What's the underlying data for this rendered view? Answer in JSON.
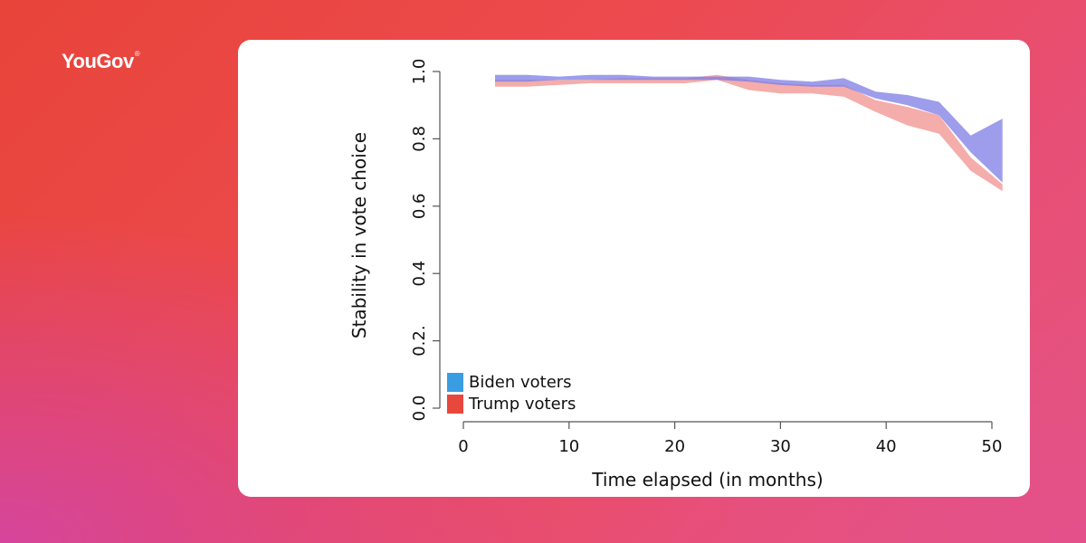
{
  "brand": {
    "name": "YouGov",
    "mark": "®"
  },
  "chart_data": {
    "type": "area",
    "title": "",
    "xlabel": "Time elapsed (in months)",
    "ylabel": "Stability in vote choice",
    "xlim": [
      0,
      50
    ],
    "ylim": [
      0.0,
      1.0
    ],
    "xticks": [
      0,
      10,
      20,
      30,
      40,
      50
    ],
    "yticks": [
      0.0,
      0.2,
      0.4,
      0.6,
      0.8,
      1.0
    ],
    "ytick_labels": [
      "0.0",
      "0.2.",
      "0.4",
      "0.6",
      "0.8",
      "1.0"
    ],
    "grid": false,
    "legend_position": "bottom-left",
    "series": [
      {
        "name": "Biden voters",
        "color": "#3b9de1",
        "fill": "#7c7ce6",
        "opacity": 0.75,
        "x": [
          3,
          6,
          9,
          12,
          15,
          18,
          21,
          24,
          27,
          30,
          33,
          36,
          39,
          42,
          45,
          48,
          51
        ],
        "lower": [
          0.97,
          0.97,
          0.975,
          0.975,
          0.975,
          0.975,
          0.975,
          0.975,
          0.97,
          0.96,
          0.955,
          0.955,
          0.92,
          0.9,
          0.87,
          0.76,
          0.67
        ],
        "upper": [
          0.99,
          0.99,
          0.985,
          0.99,
          0.99,
          0.985,
          0.985,
          0.985,
          0.985,
          0.975,
          0.97,
          0.98,
          0.94,
          0.93,
          0.91,
          0.81,
          0.86
        ]
      },
      {
        "name": "Trump voters",
        "color": "#e8473d",
        "fill": "#ef8a86",
        "opacity": 0.7,
        "x": [
          3,
          6,
          9,
          12,
          15,
          18,
          21,
          24,
          27,
          30,
          33,
          36,
          39,
          42,
          45,
          48,
          51
        ],
        "lower": [
          0.955,
          0.955,
          0.96,
          0.965,
          0.965,
          0.965,
          0.965,
          0.975,
          0.945,
          0.935,
          0.935,
          0.925,
          0.88,
          0.84,
          0.815,
          0.705,
          0.645
        ],
        "upper": [
          0.975,
          0.975,
          0.975,
          0.975,
          0.98,
          0.98,
          0.98,
          0.99,
          0.975,
          0.965,
          0.96,
          0.96,
          0.915,
          0.895,
          0.87,
          0.745,
          0.665
        ]
      }
    ]
  }
}
